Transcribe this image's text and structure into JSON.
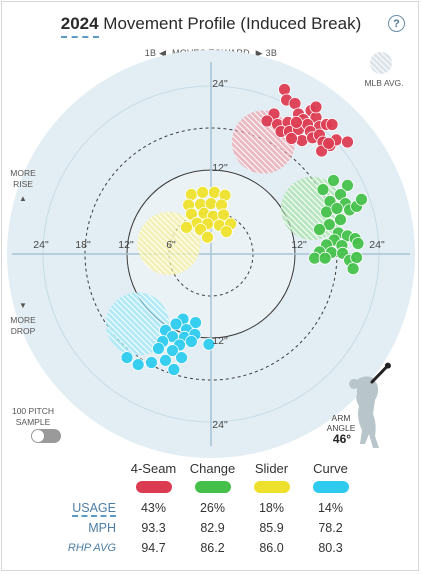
{
  "header": {
    "year": "2024",
    "title_rest": " Movement Profile (Induced Break)",
    "help": "?"
  },
  "direction": {
    "left": "1B",
    "middle": "MOVES TOWARD",
    "right": "3B"
  },
  "legend": {
    "mlb_avg": "MLB AVG."
  },
  "side_labels": {
    "more_rise_1": "MORE",
    "more_rise_2": "RISE",
    "up_arrow": "▲",
    "down_arrow": "▼",
    "more_drop_1": "MORE",
    "more_drop_2": "DROP"
  },
  "toggle": {
    "label_1": "100 PITCH",
    "label_2": "SAMPLE",
    "on": false
  },
  "arm_angle": {
    "label_1": "ARM",
    "label_2": "ANGLE",
    "value": "46°",
    "degrees": 46
  },
  "colors": {
    "circle_fill": "#e3eef4",
    "circle_inner": "#eaf2f6",
    "axis": "#a8c4d4",
    "ring": "#3d3d3d",
    "4-Seam": "#dc3c52",
    "Change": "#45c14b",
    "Slider": "#eee12b",
    "Curve": "#2ecbef"
  },
  "chart_data": {
    "type": "scatter",
    "xlabel": "",
    "ylabel": "",
    "xlim": [
      -30,
      30
    ],
    "ylim": [
      -30,
      30
    ],
    "ring_ticks": [
      "24\"",
      "18\"",
      "12\"",
      "6\"",
      "12\"",
      "24\"",
      "24\"",
      "12\"",
      "12\"",
      "24\""
    ],
    "axis_labels": {
      "top24": "24\"",
      "top12": "12\"",
      "bot12": "12\"",
      "bot24": "24\"",
      "left24": "24\"",
      "left18": "18\"",
      "left12": "12\"",
      "left6": "6\"",
      "right12": "12\"",
      "right24": "24\""
    },
    "mlb_avg": [
      {
        "name": "4-Seam",
        "x": 7.5,
        "y": 16,
        "r": 4.5
      },
      {
        "name": "Change",
        "x": 14.5,
        "y": 6.5,
        "r": 4.5
      },
      {
        "name": "Slider",
        "x": -6,
        "y": 1.5,
        "r": 4.5
      },
      {
        "name": "Curve",
        "x": -10.5,
        "y": -10,
        "r": 4.5
      }
    ],
    "series": [
      {
        "name": "4-Seam",
        "points": [
          [
            10.5,
            23.5
          ],
          [
            10.8,
            22
          ],
          [
            12,
            21.5
          ],
          [
            12.5,
            20
          ],
          [
            9,
            20
          ],
          [
            8,
            19
          ],
          [
            9.5,
            18.5
          ],
          [
            11,
            18.8
          ],
          [
            10,
            17.5
          ],
          [
            11.2,
            17.5
          ],
          [
            12.5,
            17.8
          ],
          [
            13.2,
            19.2
          ],
          [
            14.3,
            20.5
          ],
          [
            15,
            19.5
          ],
          [
            13.8,
            18.5
          ],
          [
            15.5,
            18.2
          ],
          [
            14.2,
            17.5
          ],
          [
            13,
            16.2
          ],
          [
            14.5,
            16.6
          ],
          [
            15.5,
            17
          ],
          [
            16,
            16
          ],
          [
            17,
            15.5
          ],
          [
            11.5,
            16.5
          ],
          [
            16.5,
            18.5
          ],
          [
            17.3,
            18.5
          ],
          [
            17.9,
            16.3
          ],
          [
            19.5,
            16
          ],
          [
            15.8,
            14.7
          ],
          [
            16.8,
            15.8
          ],
          [
            12.2,
            18.8
          ],
          [
            15,
            21
          ]
        ]
      },
      {
        "name": "Change",
        "points": [
          [
            17.5,
            10.5
          ],
          [
            16,
            9.2
          ],
          [
            19.5,
            9.8
          ],
          [
            18.5,
            8.5
          ],
          [
            17,
            7.5
          ],
          [
            16.5,
            6
          ],
          [
            19.2,
            7.2
          ],
          [
            18,
            6.5
          ],
          [
            19.8,
            6.3
          ],
          [
            20.8,
            6.8
          ],
          [
            21.5,
            7.8
          ],
          [
            18.5,
            4.9
          ],
          [
            16.9,
            4.2
          ],
          [
            15.5,
            3.5
          ],
          [
            18.2,
            3
          ],
          [
            19.5,
            2.6
          ],
          [
            17.6,
            2
          ],
          [
            20.6,
            2.2
          ],
          [
            16.5,
            1.3
          ],
          [
            18.7,
            1.2
          ],
          [
            15.5,
            0.3
          ],
          [
            17.2,
            0.2
          ],
          [
            18.8,
            0.1
          ],
          [
            14.8,
            -0.6
          ],
          [
            16.3,
            -0.6
          ],
          [
            19.8,
            -0.9
          ],
          [
            20.8,
            -0.5
          ],
          [
            20.3,
            -2.1
          ],
          [
            21,
            1.5
          ]
        ]
      },
      {
        "name": "Slider",
        "points": [
          [
            -2.8,
            8.5
          ],
          [
            -1.2,
            8.8
          ],
          [
            0.5,
            8.8
          ],
          [
            2,
            8.4
          ],
          [
            -3.2,
            7
          ],
          [
            -1.5,
            7.1
          ],
          [
            0,
            7.2
          ],
          [
            1.5,
            7
          ],
          [
            -2.8,
            5.7
          ],
          [
            -1,
            5.8
          ],
          [
            0.3,
            5.4
          ],
          [
            1.8,
            5.6
          ],
          [
            -2,
            4.4
          ],
          [
            -0.5,
            4.3
          ],
          [
            1.2,
            4.1
          ],
          [
            2.8,
            4.3
          ],
          [
            -3.5,
            3.8
          ],
          [
            -1.5,
            3.5
          ],
          [
            -0.5,
            2.4
          ],
          [
            2.2,
            3.2
          ]
        ]
      },
      {
        "name": "Curve",
        "points": [
          [
            -4,
            -9.3
          ],
          [
            -5,
            -10
          ],
          [
            -2.2,
            -9.8
          ],
          [
            -3.5,
            -10.8
          ],
          [
            -6.5,
            -10.9
          ],
          [
            -5.5,
            -11.8
          ],
          [
            -3.8,
            -11.9
          ],
          [
            -2.3,
            -11.5
          ],
          [
            -6.9,
            -12.5
          ],
          [
            -4.5,
            -13
          ],
          [
            -2.8,
            -12.5
          ],
          [
            -5.5,
            -13.8
          ],
          [
            -7.5,
            -13.5
          ],
          [
            -4.2,
            -14.8
          ],
          [
            -6.5,
            -15.2
          ],
          [
            -8.5,
            -15.5
          ],
          [
            -10.4,
            -15.8
          ],
          [
            -12,
            -14.8
          ],
          [
            -0.3,
            -12.9
          ],
          [
            -5.3,
            -16.5
          ]
        ]
      }
    ]
  },
  "table": {
    "headers": [
      "4-Seam",
      "Change",
      "Slider",
      "Curve"
    ],
    "rows": [
      {
        "label": "USAGE",
        "values": [
          "43%",
          "26%",
          "18%",
          "14%"
        ]
      },
      {
        "label": "MPH",
        "values": [
          "93.3",
          "82.9",
          "85.9",
          "78.2"
        ]
      },
      {
        "label": "RHP AVG",
        "values": [
          "94.7",
          "86.2",
          "86.0",
          "80.3"
        ]
      }
    ]
  }
}
